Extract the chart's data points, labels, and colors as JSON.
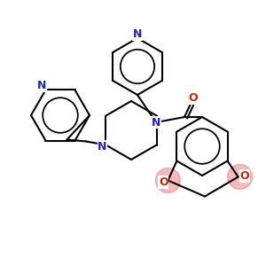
{
  "bg_color": "#ffffff",
  "black": "#000000",
  "blue": "#2222cc",
  "red": "#cc2200",
  "pink": "#e87878",
  "bond_lw": 1.5,
  "fig_size": [
    3.0,
    3.0
  ],
  "dpi": 100,
  "xlim": [
    0,
    300
  ],
  "ylim": [
    0,
    300
  ]
}
